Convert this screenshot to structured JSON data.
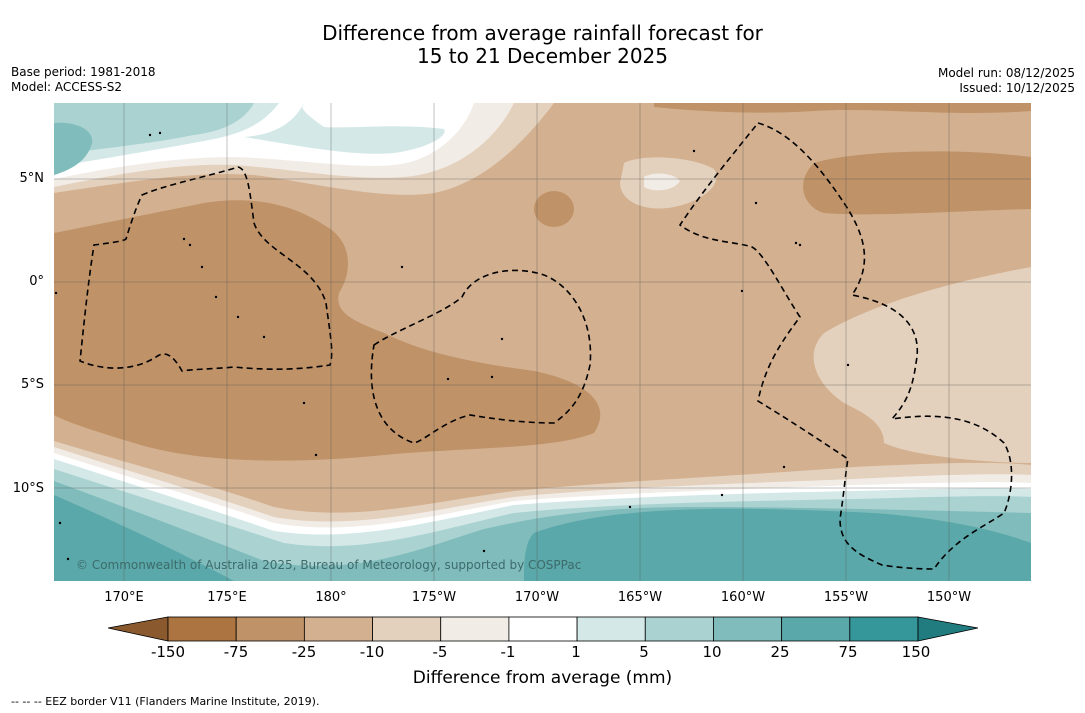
{
  "title": {
    "line1": "Difference from average rainfall forecast for",
    "line2": "15 to 21 December 2025"
  },
  "meta": {
    "base_period": "Base period: 1981-2018",
    "model": "Model: ACCESS-S2",
    "model_run": "Model run: 08/12/2025",
    "issued": "Issued: 10/12/2025"
  },
  "map": {
    "lat_labels": [
      "5°N",
      "0°",
      "5°S",
      "10°S"
    ],
    "lon_labels": [
      "170°E",
      "175°E",
      "180°",
      "175°W",
      "170°W",
      "165°W",
      "160°W",
      "155°W",
      "150°W"
    ],
    "copyright": "© Commonwealth of Australia 2025, Bureau of Meteorology, supported by COSPPac"
  },
  "legend": {
    "labels": [
      "-150",
      "-75",
      "-25",
      "-10",
      "-5",
      "-1",
      "1",
      "5",
      "10",
      "25",
      "75",
      "150"
    ],
    "colors": [
      "#8a5a2e",
      "#ab7440",
      "#bf9268",
      "#d3b08f",
      "#e3d0bd",
      "#f2ece6",
      "#ffffff",
      "#d3e8e7",
      "#a9d2d1",
      "#80bcbc",
      "#5aa8a9",
      "#35979a",
      "#217c80"
    ],
    "title": "Difference from average (mm)"
  },
  "footer": "--  --  -- EEZ border V11 (Flanders Marine Institute, 2019)."
}
